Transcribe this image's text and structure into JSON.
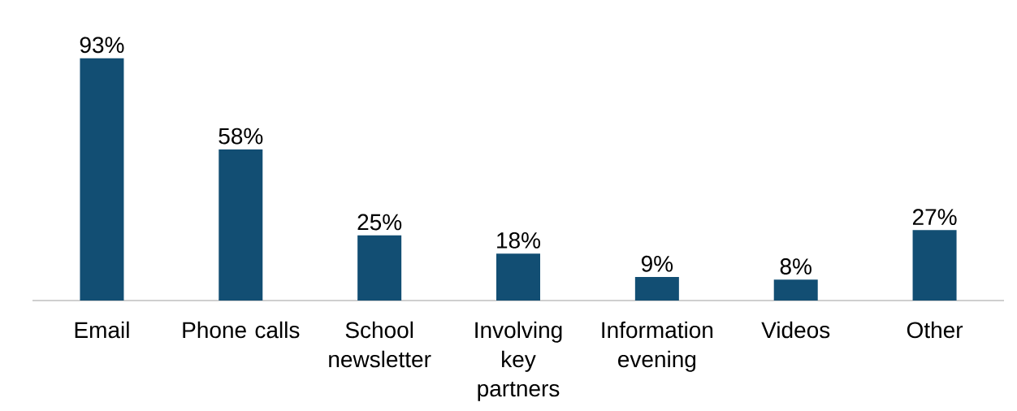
{
  "chart_data": {
    "type": "bar",
    "categories": [
      "Email",
      "Phone calls",
      "School newsletter",
      "Involving key partners",
      "Information evening",
      "Videos",
      "Other"
    ],
    "values": [
      93,
      58,
      25,
      18,
      9,
      8,
      27
    ],
    "value_labels": [
      "93%",
      "58%",
      "25%",
      "18%",
      "9%",
      "8%",
      "27%"
    ],
    "color": "#124e73",
    "grid": false
  }
}
